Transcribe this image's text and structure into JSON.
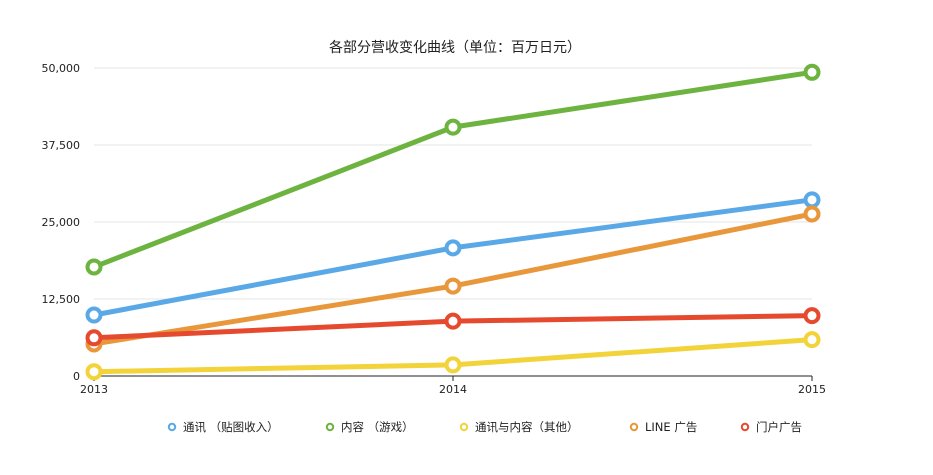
{
  "chart_data": {
    "type": "line",
    "title": "各部分营收变化曲线（单位：百万日元）",
    "xlabel": "",
    "ylabel": "",
    "categories": [
      "2013",
      "2014",
      "2015"
    ],
    "ylim": [
      0,
      50000
    ],
    "yticks": [
      0,
      12500,
      25000,
      37500,
      50000
    ],
    "ytick_labels": [
      "0",
      "12,500",
      "25,000",
      "37,500",
      "50,000"
    ],
    "grid": true,
    "legend_position": "bottom",
    "series": [
      {
        "name": "通讯 （贴图收入）",
        "color": "#5aa9e6",
        "values": [
          9900,
          20800,
          28600
        ]
      },
      {
        "name": "内容 （游戏）",
        "color": "#6db33f",
        "values": [
          17700,
          40400,
          49300
        ]
      },
      {
        "name": "通讯与内容（其他）",
        "color": "#f2d33a",
        "values": [
          700,
          1800,
          5900
        ]
      },
      {
        "name": "LINE 广告",
        "color": "#e8973b",
        "values": [
          5200,
          14600,
          26300
        ]
      },
      {
        "name": "门户广告",
        "color": "#e64a2e",
        "values": [
          6200,
          8900,
          9800
        ]
      }
    ]
  }
}
